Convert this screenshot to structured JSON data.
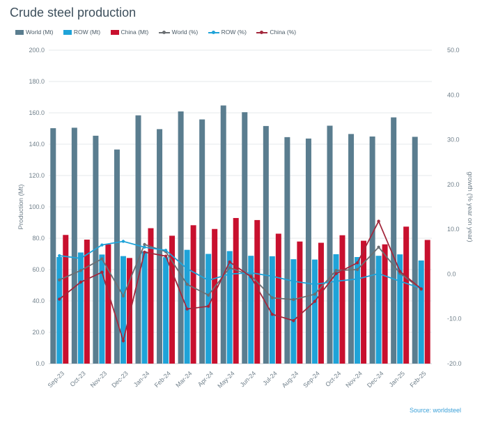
{
  "chart_data": {
    "type": "bar+line",
    "title": "Crude steel production",
    "source": "Source: worldsteel",
    "categories": [
      "Sep-23",
      "Oct-23",
      "Nov-23",
      "Dec-23",
      "Jan-24",
      "Feb-24",
      "Mar-24",
      "Apr-24",
      "May-24",
      "Jun-24",
      "Jul-24",
      "Aug-24",
      "Sep-24",
      "Oct-24",
      "Nov-24",
      "Dec-24",
      "Jan-25",
      "Feb-25"
    ],
    "ylabel_left": "Production (Mt)",
    "ylabel_right": "growth (% year on year)",
    "ylim_left": [
      0,
      200
    ],
    "ylim_right": [
      -20,
      50
    ],
    "yticks_left": [
      "0.0",
      "20.0",
      "40.0",
      "60.0",
      "80.0",
      "100.0",
      "120.0",
      "140.0",
      "160.0",
      "180.0",
      "200.0"
    ],
    "yticks_right": [
      "-20.0",
      "-10.0",
      "0.0",
      "10.0",
      "20.0",
      "30.0",
      "40.0",
      "50.0"
    ],
    "legend": [
      {
        "name": "World (Mt)",
        "kind": "bar",
        "color": "#5a7d8f"
      },
      {
        "name": "ROW (Mt)",
        "kind": "bar",
        "color": "#1fa3d8"
      },
      {
        "name": "China (Mt)",
        "kind": "bar",
        "color": "#c8102e"
      },
      {
        "name": "World (%)",
        "kind": "line",
        "color": "#6b6f73"
      },
      {
        "name": "ROW (%)",
        "kind": "line",
        "color": "#1fa3d8"
      },
      {
        "name": "China (%)",
        "kind": "line",
        "color": "#a3283c"
      }
    ],
    "bar_series": [
      {
        "name": "World (Mt)",
        "color": "#5a7d8f",
        "values": [
          150.2,
          150.5,
          145.4,
          136.6,
          158.4,
          149.6,
          160.9,
          155.8,
          164.7,
          160.4,
          151.6,
          144.5,
          143.6,
          151.8,
          146.5,
          144.9,
          157.1,
          144.7
        ]
      },
      {
        "name": "ROW (Mt)",
        "color": "#1fa3d8",
        "values": [
          68.0,
          70.9,
          69.6,
          68.6,
          71.6,
          67.9,
          72.6,
          70.0,
          71.8,
          68.8,
          68.5,
          66.6,
          66.4,
          69.8,
          68.0,
          68.8,
          69.7,
          65.8
        ]
      },
      {
        "name": "China (Mt)",
        "color": "#c8102e",
        "values": [
          82.1,
          79.1,
          76.1,
          67.4,
          86.4,
          81.6,
          88.3,
          85.9,
          92.9,
          91.6,
          82.9,
          77.9,
          77.1,
          81.9,
          78.4,
          76.1,
          87.4,
          78.9
        ]
      }
    ],
    "line_series": [
      {
        "name": "World (%)",
        "color": "#6b6f73",
        "values": [
          -1.3,
          0.8,
          3.4,
          -4.9,
          6.6,
          5.0,
          -2.3,
          -4.7,
          1.4,
          -0.3,
          -5.3,
          -5.7,
          -4.5,
          0.8,
          1.0,
          6.0,
          0.2,
          -3.4
        ]
      },
      {
        "name": "ROW (%)",
        "color": "#1fa3d8",
        "values": [
          4.1,
          3.5,
          6.5,
          7.3,
          6.0,
          5.3,
          1.2,
          -1.4,
          0.0,
          0.3,
          -0.5,
          -1.6,
          -2.3,
          -1.6,
          -1.1,
          0.1,
          -1.6,
          -3.2
        ]
      },
      {
        "name": "China (%)",
        "color": "#a3283c",
        "values": [
          -5.6,
          -1.8,
          0.4,
          -14.9,
          4.9,
          4.0,
          -7.8,
          -7.2,
          2.7,
          -0.6,
          -9.0,
          -10.4,
          -6.1,
          0.1,
          2.5,
          11.8,
          0.6,
          -3.3
        ]
      }
    ]
  }
}
